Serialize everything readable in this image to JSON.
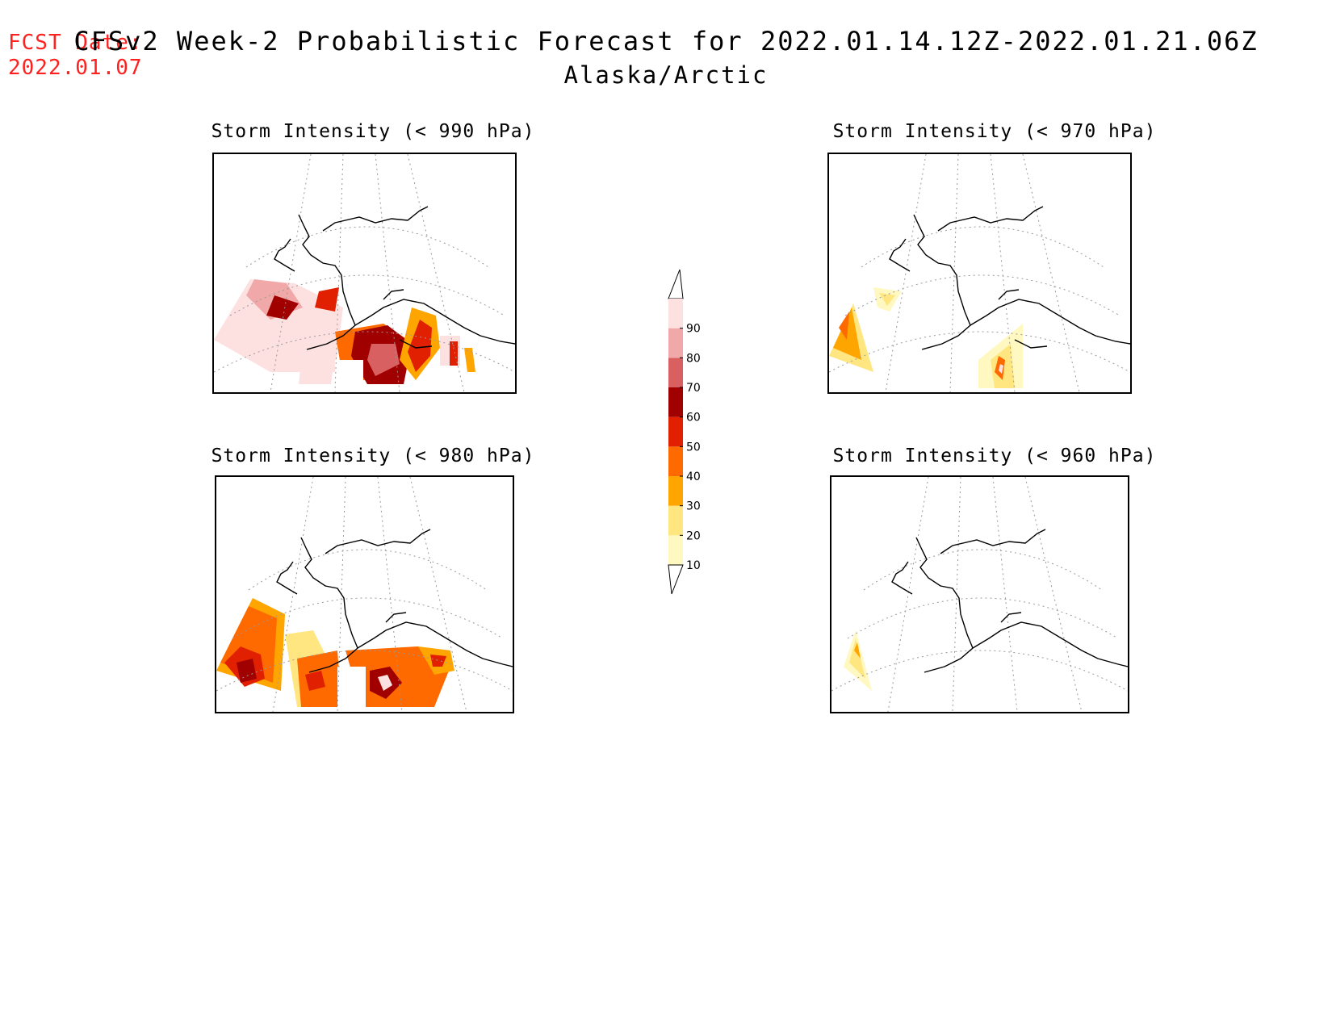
{
  "header": {
    "fcst_label": "FCST Date:",
    "fcst_date": "2022.01.07",
    "title": "CFSv2 Week-2 Probabilistic Forecast for 2022.01.14.12Z-2022.01.21.06Z",
    "subtitle": "Alaska/Arctic"
  },
  "panels": [
    {
      "id": "p990",
      "title": "Storm Intensity (< 990 hPa)"
    },
    {
      "id": "p970",
      "title": "Storm Intensity (< 970 hPa)"
    },
    {
      "id": "p980",
      "title": "Storm Intensity (< 980 hPa)"
    },
    {
      "id": "p960",
      "title": "Storm Intensity (< 960 hPa)"
    }
  ],
  "legend": {
    "levels": [
      "10",
      "20",
      "30",
      "40",
      "50",
      "60",
      "70",
      "80",
      "90"
    ],
    "colors": [
      "#fff8c0",
      "#ffe680",
      "#ffa500",
      "#ff6a00",
      "#e02000",
      "#a00000",
      "#d86060",
      "#f0a8a8",
      "#fde0e0"
    ]
  }
}
